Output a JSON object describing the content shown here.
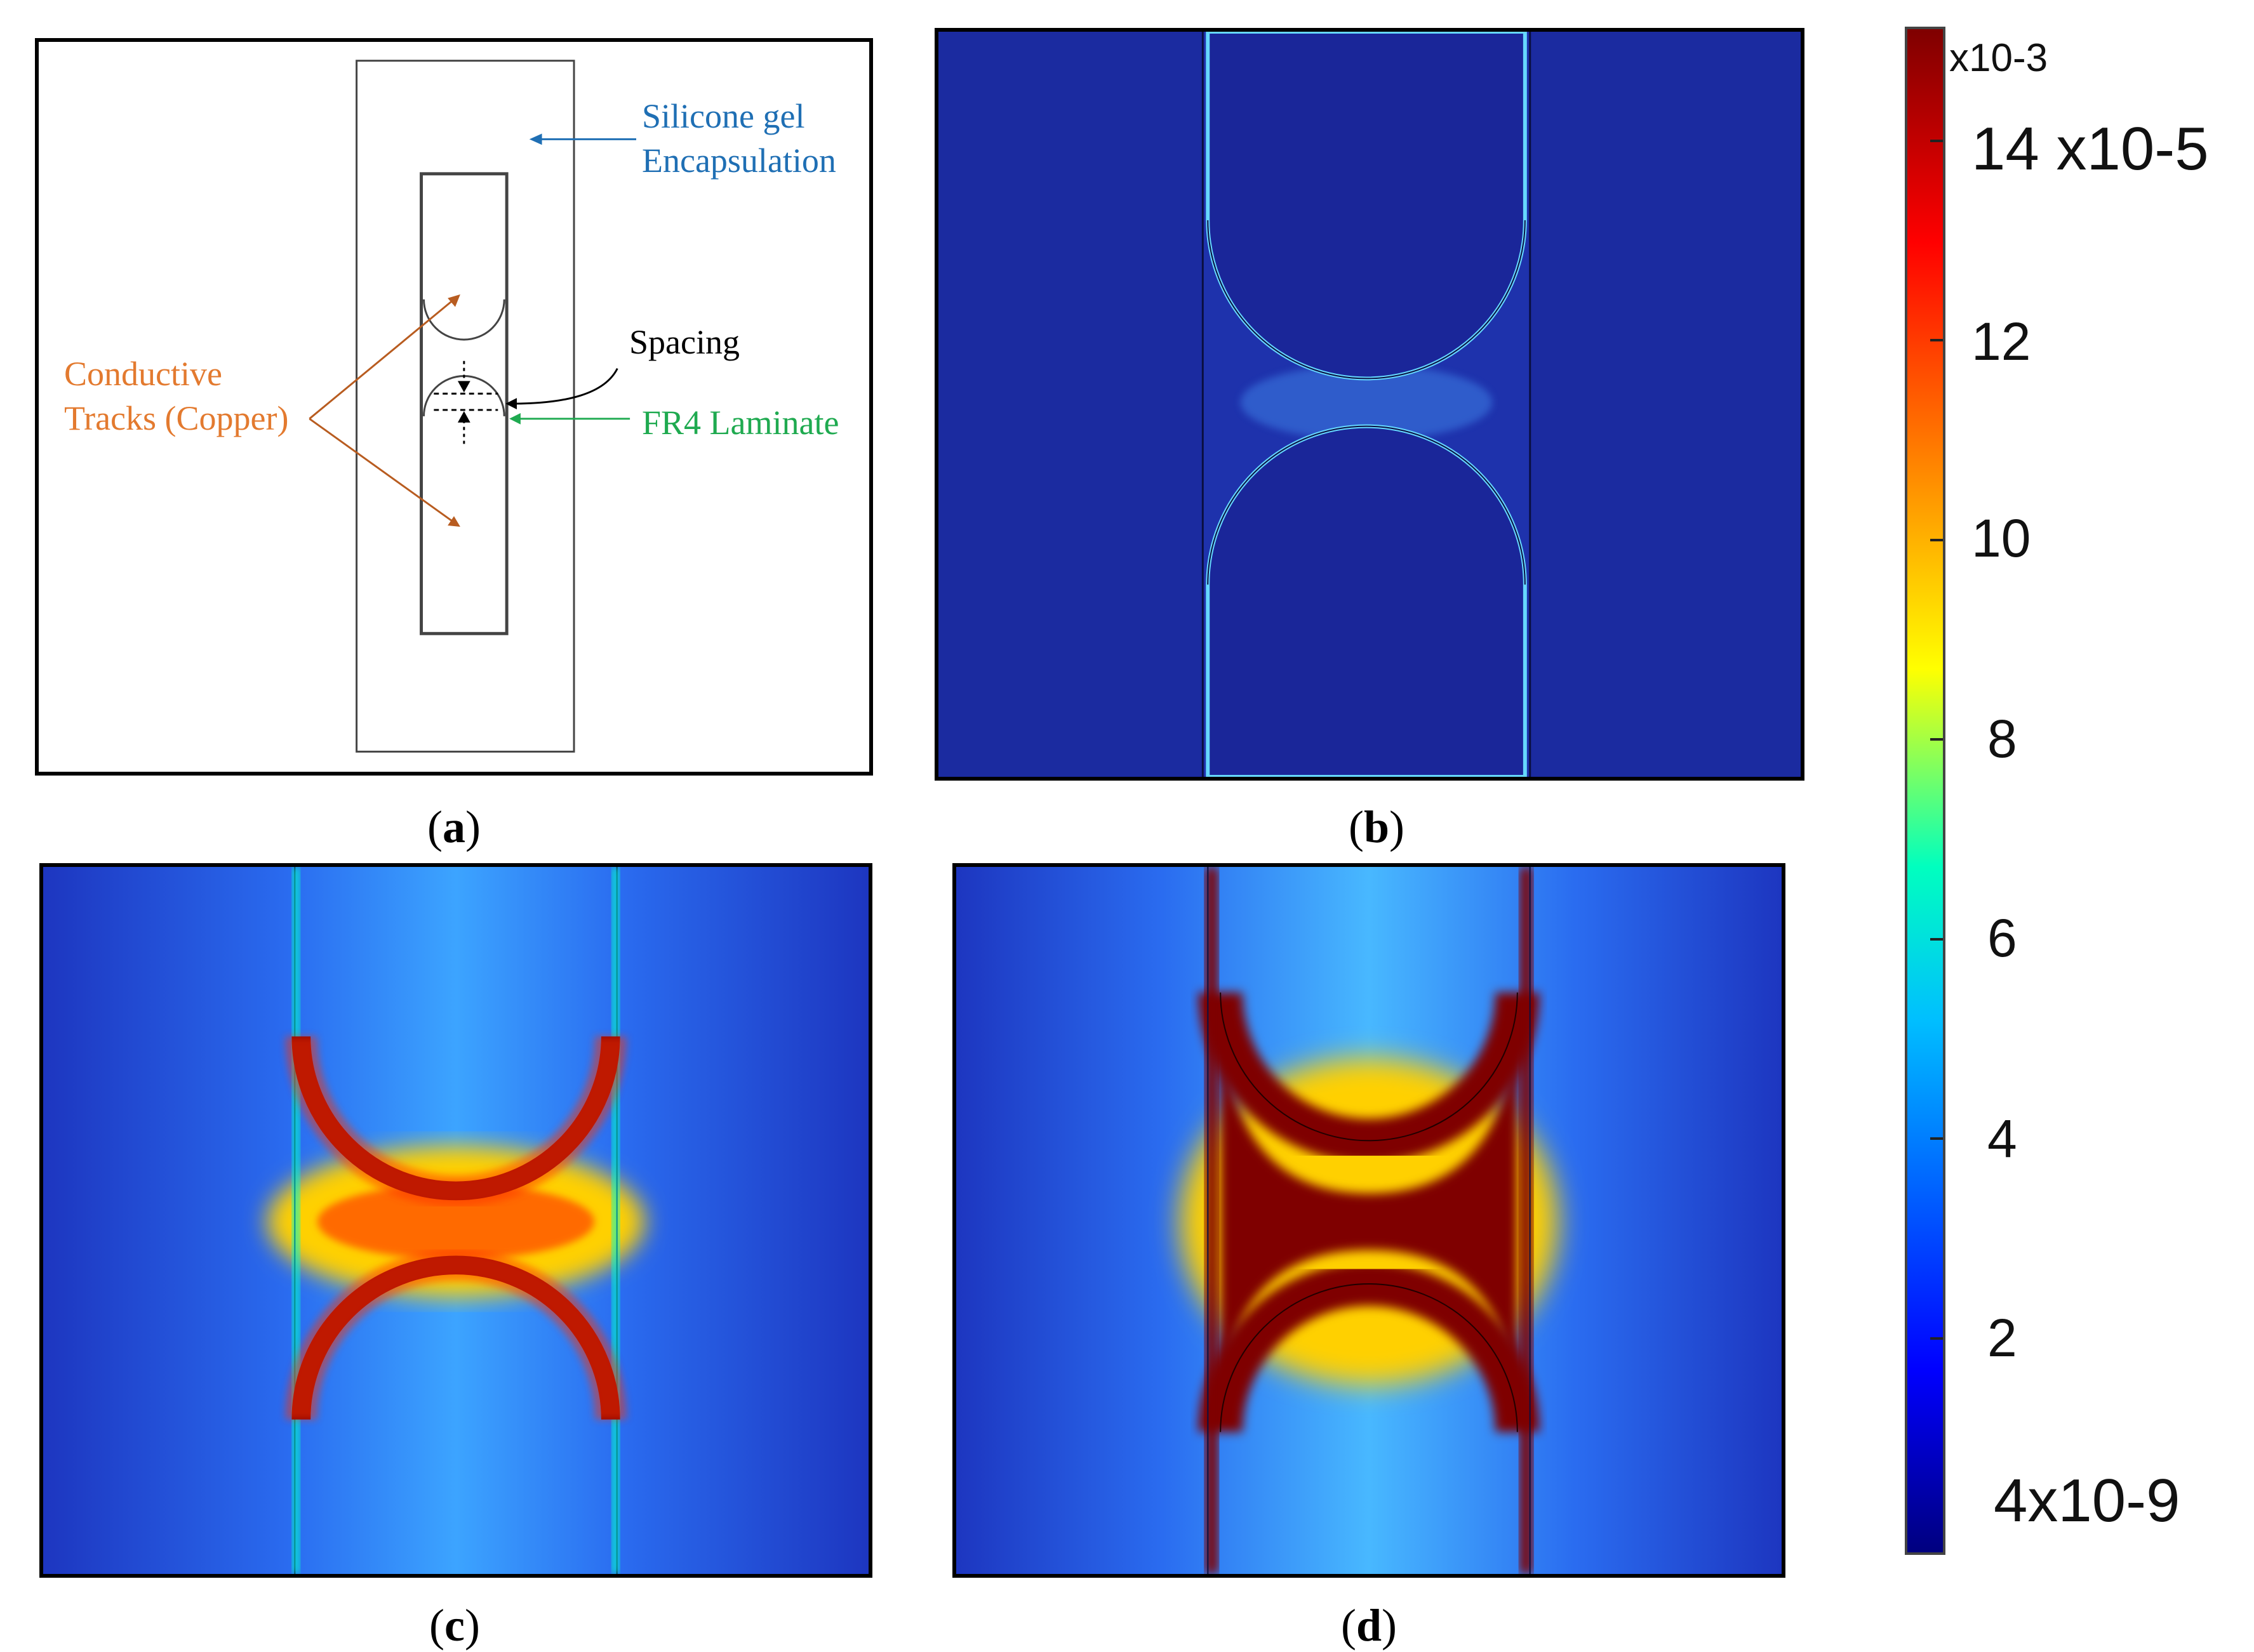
{
  "panel_a": {
    "labels": {
      "silicone_line1": "Silicone gel",
      "silicone_line2": "Encapsulation",
      "conductive_line1": "Conductive",
      "conductive_line2": "Tracks (Copper)",
      "spacing": "Spacing",
      "fr4": "FR4 Laminate"
    },
    "colors": {
      "silicone": "#1f6fb4",
      "conductive": "#e37a2f",
      "fr4": "#1faa50",
      "arrow_conductive": "#b85c20"
    }
  },
  "captions": {
    "a": "a",
    "b": "b",
    "c": "c",
    "d": "d"
  },
  "colorbar": {
    "multiplier_label": "x10-3",
    "max_label_mantissa": "14",
    "max_label_exp": "x10-5",
    "min_label": "4x10-9",
    "ticks": [
      "14",
      "12",
      "10",
      "8",
      "6",
      "4",
      "2"
    ],
    "colormap": [
      "#00007f",
      "#0000ff",
      "#00bfff",
      "#00ffbf",
      "#ffff00",
      "#ff7f00",
      "#ff0000",
      "#7f0000"
    ]
  }
}
